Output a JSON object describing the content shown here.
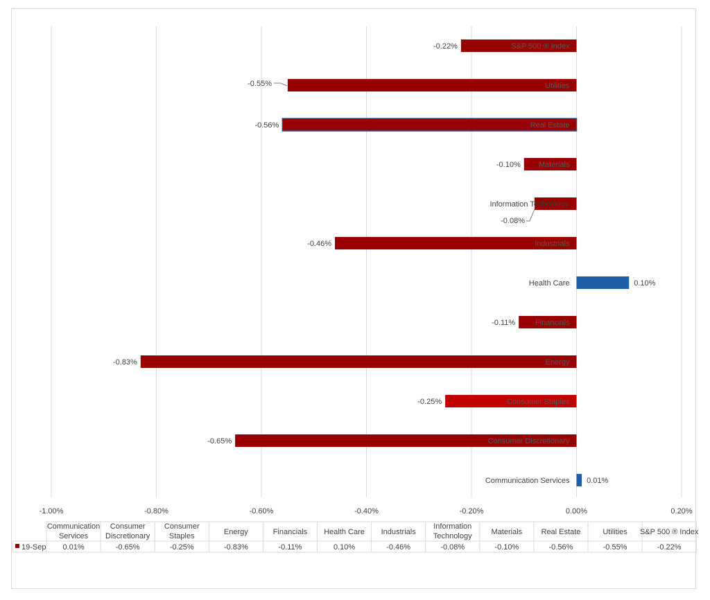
{
  "chart_data": {
    "type": "bar",
    "orientation": "horizontal",
    "categories": [
      "Communication Services",
      "Consumer Discretionary",
      "Consumer Staples",
      "Energy",
      "Financials",
      "Health Care",
      "Industrials",
      "Information Technology",
      "Materials",
      "Real Estate",
      "Utilities",
      "S&P 500 ® Index"
    ],
    "series": [
      {
        "name": "19-Sep",
        "values": [
          0.01,
          -0.65,
          -0.25,
          -0.83,
          -0.11,
          0.1,
          -0.46,
          -0.08,
          -0.1,
          -0.56,
          -0.55,
          -0.22
        ],
        "data_labels": [
          "0.01%",
          "-0.65%",
          "-0.25%",
          "-0.83%",
          "-0.11%",
          "0.10%",
          "-0.46%",
          "-0.08%",
          "-0.10%",
          "-0.56%",
          "-0.55%",
          "-0.22%"
        ]
      }
    ],
    "xlim": [
      -1.0,
      0.2
    ],
    "x_ticks": [
      -1.0,
      -0.8,
      -0.6,
      -0.4,
      -0.2,
      0.0,
      0.2
    ],
    "x_tick_labels": [
      "-1.00%",
      "-0.80%",
      "-0.60%",
      "-0.40%",
      "-0.20%",
      "0.00%",
      "0.20%"
    ],
    "unit": "%",
    "grid": "vertical",
    "legend": "in data table",
    "data_table": true,
    "table_legend_label": "19-Sep",
    "table_header_labels": [
      [
        "Communication",
        "Services"
      ],
      [
        "Consumer",
        "Discretionary"
      ],
      [
        "Consumer",
        "Staples"
      ],
      [
        "Energy"
      ],
      [
        "Financials"
      ],
      [
        "Health Care"
      ],
      [
        "Industrials"
      ],
      [
        "Information",
        "Technology"
      ],
      [
        "Materials"
      ],
      [
        "Real Estate"
      ],
      [
        "Utilities"
      ],
      [
        "S&P 500 ® Index"
      ]
    ],
    "colors": {
      "negative": "#990000",
      "consumer_staples": "#c00000",
      "positive": "#1f5fa8",
      "gridline": "#d9d9d9",
      "text": "#404040",
      "in_bar_label": "#595959",
      "real_estate_outline": "#2f5597"
    }
  }
}
